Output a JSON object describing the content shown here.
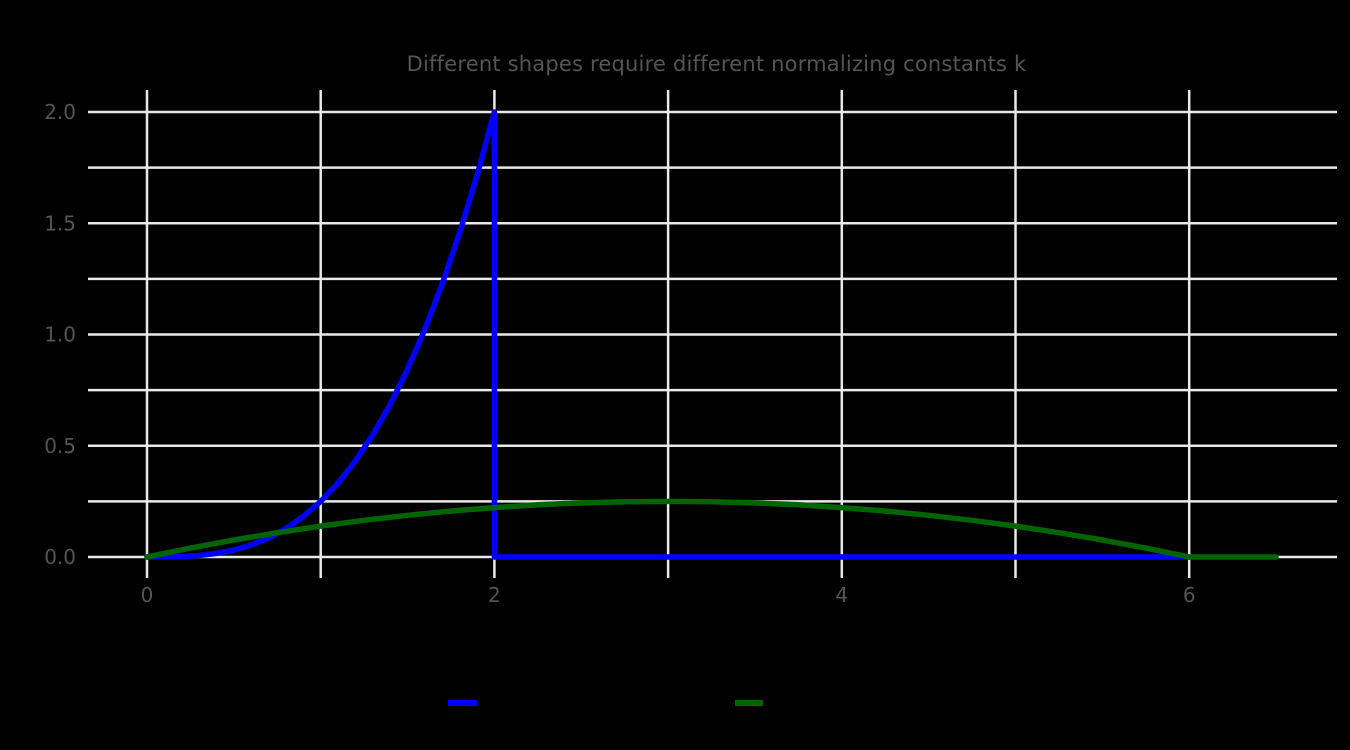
{
  "figure": {
    "background_color": "#000000"
  },
  "chart_data": {
    "type": "line",
    "title": "Different shapes require different normalizing constants k",
    "xlabel": "",
    "ylabel": "",
    "grid": true,
    "grid_color": "#e9e9e9",
    "text_color": "#555555",
    "xlim": [
      -0.33,
      6.83
    ],
    "ylim": [
      -0.1,
      2.1
    ],
    "legend_position": "lower center outside plot",
    "x_ticks": [
      {
        "value": 0,
        "label": "0"
      },
      {
        "value": 1,
        "label": ""
      },
      {
        "value": 2,
        "label": "2"
      },
      {
        "value": 3,
        "label": ""
      },
      {
        "value": 4,
        "label": "4"
      },
      {
        "value": 5,
        "label": ""
      },
      {
        "value": 6,
        "label": "6"
      }
    ],
    "y_ticks": [
      {
        "value": 0.0,
        "label": "0.0"
      },
      {
        "value": 0.25,
        "label": ""
      },
      {
        "value": 0.5,
        "label": "0.5"
      },
      {
        "value": 0.75,
        "label": ""
      },
      {
        "value": 1.0,
        "label": "1.0"
      },
      {
        "value": 1.25,
        "label": ""
      },
      {
        "value": 1.5,
        "label": "1.5"
      },
      {
        "value": 1.75,
        "label": ""
      },
      {
        "value": 2.0,
        "label": "2.0"
      }
    ],
    "series": [
      {
        "id": "cubic-density",
        "color": "#0000ff",
        "formula": "y = x^3/4 on [0,2], y = 0 on (2,6]",
        "peak": [
          2,
          2.0
        ],
        "points": [
          [
            0,
            0
          ],
          [
            0.1,
            0.0003
          ],
          [
            0.2,
            0.002
          ],
          [
            0.3,
            0.0068
          ],
          [
            0.4,
            0.016
          ],
          [
            0.5,
            0.0313
          ],
          [
            0.6,
            0.054
          ],
          [
            0.7,
            0.0858
          ],
          [
            0.8,
            0.128
          ],
          [
            0.9,
            0.1823
          ],
          [
            1.0,
            0.25
          ],
          [
            1.1,
            0.3328
          ],
          [
            1.2,
            0.432
          ],
          [
            1.3,
            0.5493
          ],
          [
            1.4,
            0.686
          ],
          [
            1.5,
            0.8438
          ],
          [
            1.6,
            1.024
          ],
          [
            1.7,
            1.2283
          ],
          [
            1.8,
            1.458
          ],
          [
            1.9,
            1.7148
          ],
          [
            2,
            2
          ],
          [
            2,
            0
          ],
          [
            6,
            0
          ]
        ]
      },
      {
        "id": "parabola-density",
        "color": "#006400",
        "formula": "y = x(6-x)/36 on [0,6], y = 0 on (6,6.5]",
        "peak": [
          3,
          0.25
        ],
        "points": [
          [
            0,
            0
          ],
          [
            0.25,
            0.0399
          ],
          [
            0.5,
            0.0764
          ],
          [
            0.75,
            0.1094
          ],
          [
            1,
            0.1389
          ],
          [
            1.25,
            0.1649
          ],
          [
            1.5,
            0.1875
          ],
          [
            1.75,
            0.2066
          ],
          [
            2,
            0.2222
          ],
          [
            2.25,
            0.2344
          ],
          [
            2.5,
            0.2431
          ],
          [
            2.75,
            0.2483
          ],
          [
            3,
            0.25
          ],
          [
            3.25,
            0.2483
          ],
          [
            3.5,
            0.2431
          ],
          [
            3.75,
            0.2344
          ],
          [
            4,
            0.2222
          ],
          [
            4.25,
            0.2066
          ],
          [
            4.5,
            0.1875
          ],
          [
            4.75,
            0.1649
          ],
          [
            5,
            0.1389
          ],
          [
            5.25,
            0.1094
          ],
          [
            5.5,
            0.0764
          ],
          [
            5.75,
            0.0399
          ],
          [
            6,
            0
          ],
          [
            6.5,
            0
          ]
        ]
      }
    ],
    "legend": {
      "items": [
        {
          "label": "",
          "color": "#0000ff"
        },
        {
          "label": "",
          "color": "#006400"
        }
      ]
    }
  }
}
